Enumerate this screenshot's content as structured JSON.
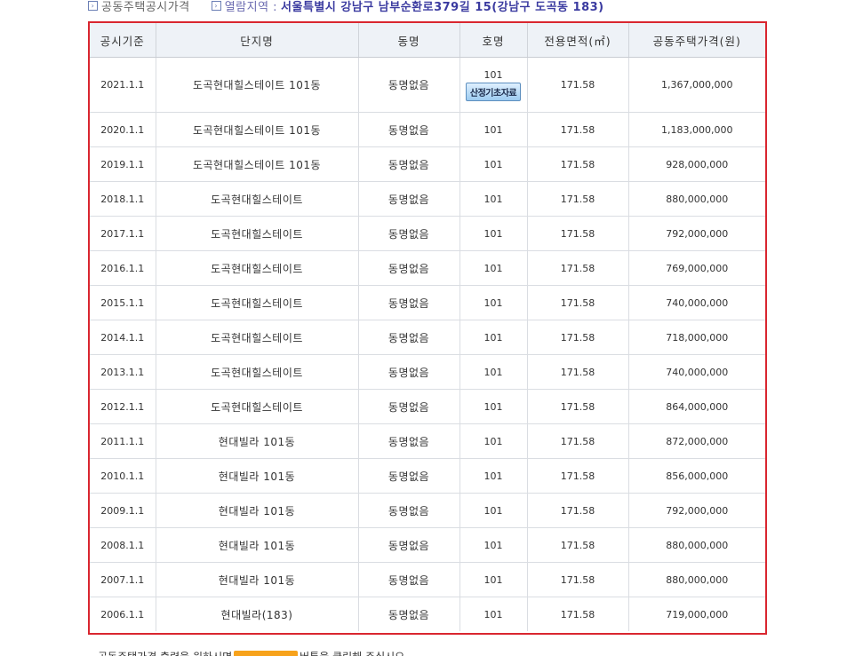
{
  "breadcrumb": {
    "section_label": "공동주택공시가격",
    "region_label": "열람지역 :",
    "region_value": "서울특별시 강남구 남부순환로379길 15(강남구 도곡동 183)"
  },
  "table": {
    "headers": [
      "공시기준",
      "단지명",
      "동명",
      "호명",
      "전용면적(㎡)",
      "공동주택가격(원)"
    ],
    "calc_button_label": "산정기초자료",
    "rows": [
      {
        "date": "2021.1.1",
        "complex": "도곡현대힐스테이트 101동",
        "dong": "동명없음",
        "ho": "101",
        "area": "171.58",
        "price": "1,367,000,000"
      },
      {
        "date": "2020.1.1",
        "complex": "도곡현대힐스테이트 101동",
        "dong": "동명없음",
        "ho": "101",
        "area": "171.58",
        "price": "1,183,000,000"
      },
      {
        "date": "2019.1.1",
        "complex": "도곡현대힐스테이트 101동",
        "dong": "동명없음",
        "ho": "101",
        "area": "171.58",
        "price": "928,000,000"
      },
      {
        "date": "2018.1.1",
        "complex": "도곡현대힐스테이트",
        "dong": "동명없음",
        "ho": "101",
        "area": "171.58",
        "price": "880,000,000"
      },
      {
        "date": "2017.1.1",
        "complex": "도곡현대힐스테이트",
        "dong": "동명없음",
        "ho": "101",
        "area": "171.58",
        "price": "792,000,000"
      },
      {
        "date": "2016.1.1",
        "complex": "도곡현대힐스테이트",
        "dong": "동명없음",
        "ho": "101",
        "area": "171.58",
        "price": "769,000,000"
      },
      {
        "date": "2015.1.1",
        "complex": "도곡현대힐스테이트",
        "dong": "동명없음",
        "ho": "101",
        "area": "171.58",
        "price": "740,000,000"
      },
      {
        "date": "2014.1.1",
        "complex": "도곡현대힐스테이트",
        "dong": "동명없음",
        "ho": "101",
        "area": "171.58",
        "price": "718,000,000"
      },
      {
        "date": "2013.1.1",
        "complex": "도곡현대힐스테이트",
        "dong": "동명없음",
        "ho": "101",
        "area": "171.58",
        "price": "740,000,000"
      },
      {
        "date": "2012.1.1",
        "complex": "도곡현대힐스테이트",
        "dong": "동명없음",
        "ho": "101",
        "area": "171.58",
        "price": "864,000,000"
      },
      {
        "date": "2011.1.1",
        "complex": "현대빌라 101동",
        "dong": "동명없음",
        "ho": "101",
        "area": "171.58",
        "price": "872,000,000"
      },
      {
        "date": "2010.1.1",
        "complex": "현대빌라 101동",
        "dong": "동명없음",
        "ho": "101",
        "area": "171.58",
        "price": "856,000,000"
      },
      {
        "date": "2009.1.1",
        "complex": "현대빌라 101동",
        "dong": "동명없음",
        "ho": "101",
        "area": "171.58",
        "price": "792,000,000"
      },
      {
        "date": "2008.1.1",
        "complex": "현대빌라 101동",
        "dong": "동명없음",
        "ho": "101",
        "area": "171.58",
        "price": "880,000,000"
      },
      {
        "date": "2007.1.1",
        "complex": "현대빌라 101동",
        "dong": "동명없음",
        "ho": "101",
        "area": "171.58",
        "price": "880,000,000"
      },
      {
        "date": "2006.1.1",
        "complex": "현대빌라(183)",
        "dong": "동명없음",
        "ho": "101",
        "area": "171.58",
        "price": "719,000,000"
      }
    ]
  },
  "footer": {
    "note_prefix": "공동주택가격 출력을 원하시면",
    "note_suffix": "버튼을 클릭해 주십시오"
  },
  "colors": {
    "frame_border": "#d9262f",
    "header_bg": "#eef2f7",
    "region_text": "#3b3ba0",
    "print_button": "#f7a21b"
  }
}
